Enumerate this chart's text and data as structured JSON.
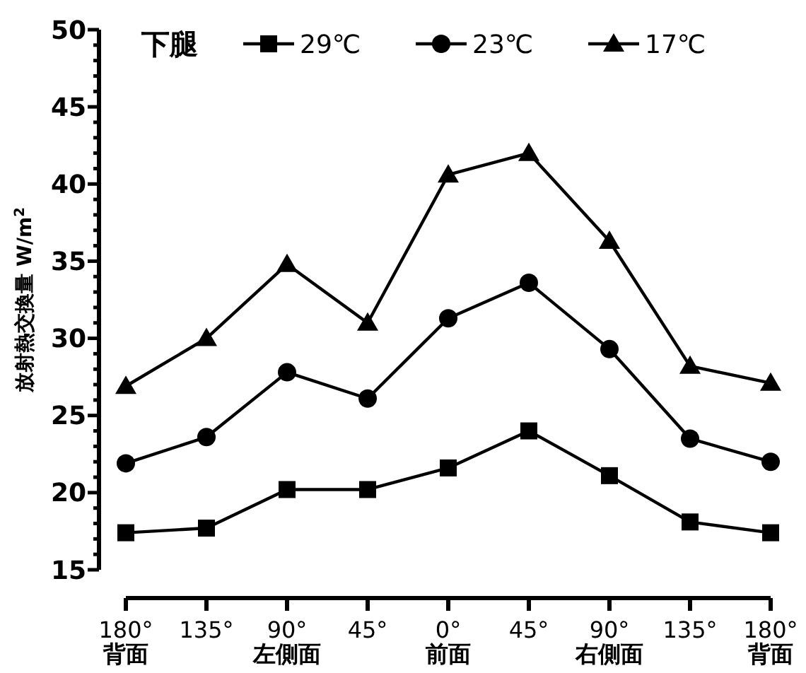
{
  "chart_data": {
    "type": "line",
    "legend_title": "下腿",
    "ylabel": "放射熱交換量 W/m$^{2}$",
    "categories": [
      "180°\n背面",
      "135°",
      "90°\n左側面",
      "45°",
      "0°\n前面",
      "45°",
      "90°\n右側面",
      "135°",
      "180°\n背面"
    ],
    "series": [
      {
        "name": "29℃",
        "color": "#000000",
        "marker": "square",
        "values": [
          17.4,
          17.7,
          20.2,
          20.2,
          21.6,
          24.0,
          21.1,
          18.1,
          17.4
        ]
      },
      {
        "name": "23℃",
        "color": "#000000",
        "marker": "circle",
        "values": [
          21.9,
          23.6,
          27.8,
          26.1,
          31.3,
          33.6,
          29.3,
          23.5,
          22.0
        ]
      },
      {
        "name": "17℃",
        "color": "#000000",
        "marker": "triangle",
        "values": [
          26.9,
          30.0,
          34.8,
          31.0,
          40.6,
          42.0,
          36.3,
          28.2,
          27.1
        ]
      }
    ],
    "ylim": [
      15,
      50
    ],
    "yticks": [
      15,
      {
        "value": 16,
        "label": null
      },
      {
        "value": 17,
        "label": null
      },
      {
        "value": 18,
        "label": null
      },
      {
        "value": 19,
        "label": null
      },
      20,
      {
        "value": 21,
        "label": null
      },
      {
        "value": 22,
        "label": null
      },
      {
        "value": 23,
        "label": null
      },
      {
        "value": 24,
        "label": null
      },
      25,
      {
        "value": 26,
        "label": null
      },
      {
        "value": 27,
        "label": null
      },
      {
        "value": 28,
        "label": null
      },
      {
        "value": 29,
        "label": null
      },
      30,
      {
        "value": 31,
        "label": null
      },
      {
        "value": 32,
        "label": null
      },
      {
        "value": 33,
        "label": null
      },
      {
        "value": 34,
        "label": null
      },
      35,
      {
        "value": 36,
        "label": null
      },
      {
        "value": 37,
        "label": null
      },
      {
        "value": 38,
        "label": null
      },
      {
        "value": 39,
        "label": null
      },
      40,
      {
        "value": 41,
        "label": null
      },
      {
        "value": 42,
        "label": null
      },
      {
        "value": 43,
        "label": null
      },
      {
        "value": 44,
        "label": null
      },
      45,
      {
        "value": 46,
        "label": null
      },
      {
        "value": 47,
        "label": null
      },
      {
        "value": 48,
        "label": null
      },
      {
        "value": 49,
        "label": null
      },
      50
    ],
    "legend": "top",
    "grid": false,
    "line_style": "solid"
  }
}
